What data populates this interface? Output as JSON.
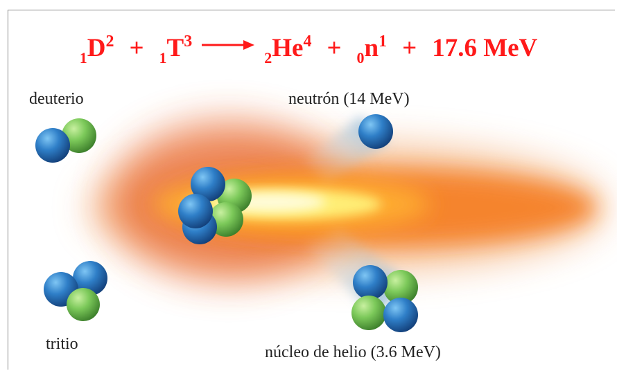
{
  "equation": {
    "d_z": "1",
    "d_sym": "D",
    "d_a": "2",
    "plus1": "+",
    "t_z": "1",
    "t_sym": "T",
    "t_a": "3",
    "he_z": "2",
    "he_sym": "He",
    "he_a": "4",
    "plus2": "+",
    "n_z": "0",
    "n_sym": "n",
    "n_a": "1",
    "plus3": "+",
    "energy": "17.6 MeV"
  },
  "labels": {
    "deuterium": "deuterio",
    "tritium": "tritio",
    "neutron": "neutrón (14 MeV)",
    "helium": "núcleo de helio (3.6 MeV)"
  },
  "colors": {
    "equation": "#ff1a1a",
    "proton": "#2f7fc8",
    "neutron": "#7cc95a",
    "flame_outer": "#f07a20",
    "flame_core": "#fff27a"
  }
}
